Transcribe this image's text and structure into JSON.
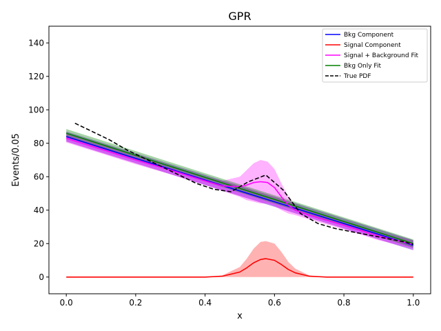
{
  "chart_data": {
    "type": "line",
    "title": "GPR",
    "xlabel": "x",
    "ylabel": "Events/0.05",
    "xlim": [
      -0.05,
      1.05
    ],
    "ylim": [
      -10,
      150
    ],
    "xticks": [
      0.0,
      0.2,
      0.4,
      0.6,
      0.8,
      1.0
    ],
    "xtick_labels": [
      "0.0",
      "0.2",
      "0.4",
      "0.6",
      "0.8",
      "1.0"
    ],
    "yticks": [
      0,
      20,
      40,
      60,
      80,
      100,
      120,
      140
    ],
    "ytick_labels": [
      "0",
      "20",
      "40",
      "60",
      "80",
      "100",
      "120",
      "140"
    ],
    "grid": false,
    "legend_position": "top-right",
    "series": [
      {
        "name": "Bkg Component",
        "color": "#0000ff",
        "style": "solid",
        "x": [
          0.0,
          0.1,
          0.2,
          0.3,
          0.4,
          0.5,
          0.6,
          0.7,
          0.8,
          0.9,
          1.0
        ],
        "values": [
          84.0,
          77.5,
          71.0,
          64.5,
          58.0,
          51.5,
          45.0,
          38.5,
          32.0,
          25.5,
          19.0
        ],
        "band": {
          "color": "#8a2be2",
          "opacity": 0.55,
          "halfwidth": 3.0
        }
      },
      {
        "name": "Signal Component",
        "color": "#ff0000",
        "style": "solid",
        "x": [
          0.0,
          0.1,
          0.2,
          0.3,
          0.4,
          0.45,
          0.5,
          0.52,
          0.54,
          0.56,
          0.575,
          0.6,
          0.62,
          0.64,
          0.66,
          0.7,
          0.75,
          0.8,
          0.9,
          1.0
        ],
        "values": [
          0.0,
          0.0,
          0.0,
          0.0,
          0.0,
          0.5,
          3.0,
          5.5,
          8.5,
          10.5,
          11.0,
          10.0,
          7.5,
          4.5,
          2.5,
          0.5,
          0.0,
          0.0,
          0.0,
          0.0
        ],
        "band_upper": [
          0.0,
          0.0,
          0.0,
          0.0,
          0.0,
          1.0,
          6.0,
          11.0,
          17.0,
          21.0,
          21.5,
          20.0,
          15.0,
          9.0,
          5.0,
          1.0,
          0.0,
          0.0,
          0.0,
          0.0
        ],
        "band_lower": [
          0.0,
          0.0,
          0.0,
          0.0,
          0.0,
          0.0,
          0.0,
          0.0,
          0.0,
          0.0,
          0.0,
          0.0,
          0.0,
          0.0,
          0.0,
          0.0,
          0.0,
          0.0,
          0.0,
          0.0
        ],
        "band_color": "#ff0000",
        "band_opacity": 0.3
      },
      {
        "name": "Signal + Background Fit",
        "color": "#ff00ff",
        "style": "solid",
        "x": [
          0.0,
          0.1,
          0.2,
          0.3,
          0.4,
          0.45,
          0.5,
          0.52,
          0.54,
          0.56,
          0.58,
          0.6,
          0.62,
          0.64,
          0.66,
          0.7,
          0.8,
          0.9,
          1.0
        ],
        "values": [
          83.0,
          76.5,
          70.0,
          64.0,
          57.5,
          54.5,
          54.0,
          55.0,
          56.5,
          57.0,
          56.5,
          53.5,
          48.0,
          43.0,
          40.0,
          37.0,
          31.0,
          24.5,
          19.5
        ],
        "band_upper": [
          85.5,
          79.0,
          72.5,
          66.5,
          60.0,
          57.5,
          60.0,
          64.0,
          68.0,
          70.0,
          69.0,
          64.5,
          56.0,
          48.0,
          43.0,
          39.5,
          33.5,
          27.0,
          22.0
        ],
        "band_lower": [
          80.5,
          74.0,
          67.5,
          61.5,
          55.0,
          51.5,
          48.0,
          46.0,
          45.0,
          44.0,
          44.0,
          42.5,
          40.0,
          38.0,
          37.0,
          34.5,
          28.5,
          22.0,
          17.0
        ],
        "band_color": "#ff00ff",
        "band_opacity": 0.3
      },
      {
        "name": "Bkg Only Fit",
        "color": "#008000",
        "style": "solid",
        "x": [
          0.0,
          0.1,
          0.2,
          0.3,
          0.4,
          0.5,
          0.6,
          0.7,
          0.8,
          0.9,
          1.0
        ],
        "values": [
          86.0,
          79.4,
          72.8,
          66.2,
          59.6,
          53.0,
          46.4,
          39.8,
          33.2,
          26.6,
          20.0
        ],
        "band": {
          "color": "#008000",
          "opacity": 0.35,
          "halfwidth": 2.5
        }
      },
      {
        "name": "True PDF",
        "color": "#000000",
        "style": "dashed",
        "x": [
          0.025,
          0.075,
          0.125,
          0.175,
          0.225,
          0.275,
          0.325,
          0.375,
          0.425,
          0.475,
          0.525,
          0.575,
          0.625,
          0.675,
          0.725,
          0.775,
          0.825,
          0.875,
          0.925,
          0.975,
          1.0
        ],
        "values": [
          92.0,
          87.0,
          82.0,
          76.0,
          71.0,
          66.0,
          61.0,
          56.0,
          52.5,
          51.0,
          57.0,
          61.0,
          52.0,
          38.0,
          32.0,
          29.0,
          27.0,
          25.0,
          23.0,
          21.0,
          19.5
        ]
      }
    ]
  }
}
